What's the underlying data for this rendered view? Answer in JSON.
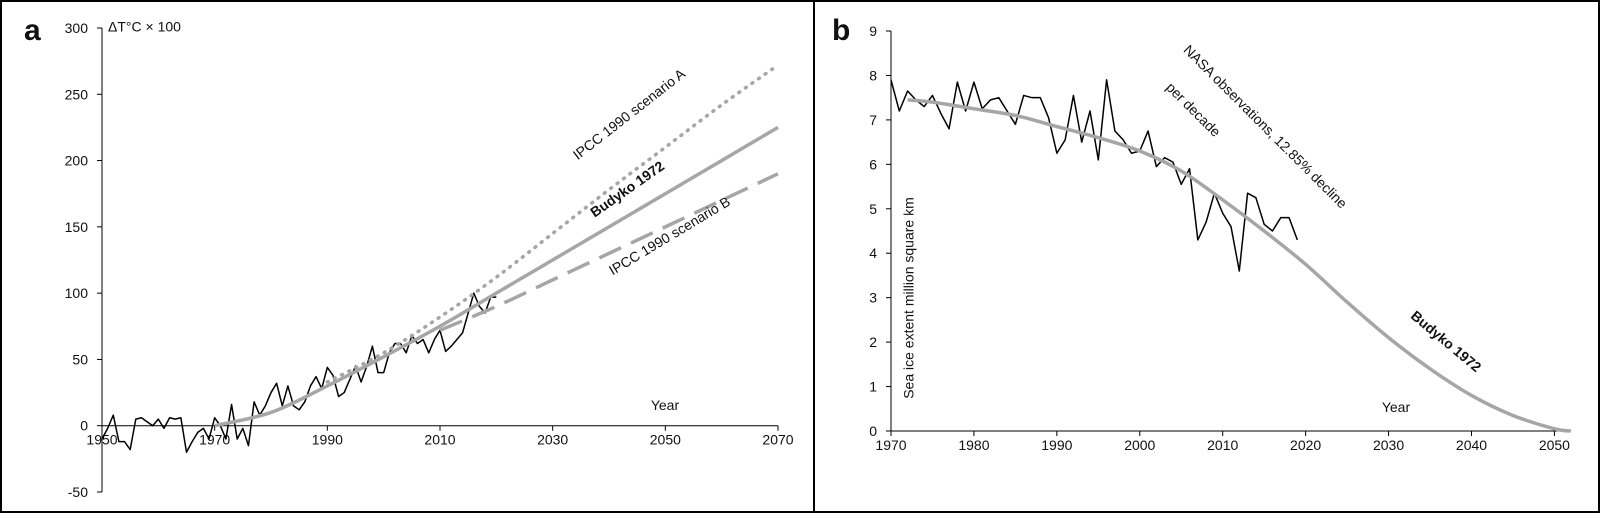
{
  "chart_data": [
    {
      "type": "line",
      "panel": "a",
      "y_label": "ΔT°C × 100",
      "x_label": "Year",
      "xlim": [
        1950,
        2070
      ],
      "xticks": [
        1950,
        1970,
        1990,
        2010,
        2030,
        2050,
        2070
      ],
      "ylim": [
        -50,
        300
      ],
      "yticks": [
        -50,
        0,
        50,
        100,
        150,
        200,
        250,
        300
      ],
      "series": [
        {
          "color": "#000000",
          "dash": "solid",
          "x": [
            1950,
            1951,
            1952,
            1953,
            1954,
            1955,
            1956,
            1957,
            1958,
            1959,
            1960,
            1961,
            1962,
            1963,
            1964,
            1965,
            1966,
            1967,
            1968,
            1969,
            1970,
            1971,
            1972,
            1973,
            1974,
            1975,
            1976,
            1977,
            1978,
            1979,
            1980,
            1981,
            1982,
            1983,
            1984,
            1985,
            1986,
            1987,
            1988,
            1989,
            1990,
            1991,
            1992,
            1993,
            1994,
            1995,
            1996,
            1997,
            1998,
            1999,
            2000,
            2001,
            2002,
            2003,
            2004,
            2005,
            2006,
            2007,
            2008,
            2009,
            2010,
            2011,
            2012,
            2013,
            2014,
            2015,
            2016,
            2017,
            2018,
            2019,
            2020
          ],
          "values": [
            -10,
            -2,
            8,
            -12,
            -12,
            -18,
            5,
            6,
            3,
            0,
            5,
            -2,
            6,
            5,
            6,
            -20,
            -12,
            -5,
            -2,
            -10,
            6,
            0,
            -10,
            16,
            -10,
            -2,
            -15,
            18,
            8,
            15,
            25,
            32,
            15,
            30,
            15,
            12,
            18,
            30,
            37,
            28,
            44,
            38,
            22,
            25,
            35,
            45,
            33,
            45,
            60,
            40,
            40,
            55,
            62,
            62,
            55,
            68,
            62,
            65,
            55,
            65,
            72,
            56,
            60,
            65,
            70,
            85,
            100,
            90,
            85,
            97,
            97
          ]
        },
        {
          "name": "Budyko 1972",
          "color": "#a6a6a6",
          "dash": "solid",
          "x": [
            1970,
            1980,
            1990,
            2000,
            2010,
            2020,
            2030,
            2040,
            2050,
            2060,
            2070
          ],
          "values": [
            0,
            10,
            30,
            52,
            75,
            100,
            125,
            150,
            175,
            200,
            225
          ]
        },
        {
          "name": "IPCC 1990 scenario A",
          "color": "#a6a6a6",
          "dash": "dotted",
          "x": [
            1990,
            2000,
            2010,
            2020,
            2030,
            2040,
            2050,
            2060,
            2070
          ],
          "values": [
            33,
            55,
            82,
            112,
            145,
            178,
            210,
            242,
            272
          ]
        },
        {
          "name": "IPCC 1990 scenario B",
          "color": "#a6a6a6",
          "dash": "dashed",
          "x": [
            2010,
            2020,
            2030,
            2040,
            2050,
            2060,
            2070
          ],
          "values": [
            72,
            90,
            110,
            130,
            150,
            170,
            190
          ]
        }
      ]
    },
    {
      "type": "line",
      "panel": "b",
      "y_label": "Sea ice extent million square km",
      "x_label": "Year",
      "annotations": [
        "NASA observations, 12.85% decline",
        "per decade"
      ],
      "xlim": [
        1970,
        2052
      ],
      "xticks": [
        1970,
        1980,
        1990,
        2000,
        2010,
        2020,
        2030,
        2040,
        2050
      ],
      "ylim": [
        0,
        9
      ],
      "yticks": [
        0,
        1,
        2,
        3,
        4,
        5,
        6,
        7,
        8,
        9
      ],
      "series": [
        {
          "color": "#000000",
          "dash": "solid",
          "x": [
            1970,
            1971,
            1972,
            1973,
            1974,
            1975,
            1976,
            1977,
            1978,
            1979,
            1980,
            1981,
            1982,
            1983,
            1984,
            1985,
            1986,
            1987,
            1988,
            1989,
            1990,
            1991,
            1992,
            1993,
            1994,
            1995,
            1996,
            1997,
            1998,
            1999,
            2000,
            2001,
            2002,
            2003,
            2004,
            2005,
            2006,
            2007,
            2008,
            2009,
            2010,
            2011,
            2012,
            2013,
            2014,
            2015,
            2016,
            2017,
            2018,
            2019
          ],
          "values": [
            7.9,
            7.2,
            7.65,
            7.45,
            7.3,
            7.55,
            7.15,
            6.8,
            7.85,
            7.2,
            7.85,
            7.25,
            7.45,
            7.5,
            7.2,
            6.9,
            7.55,
            7.5,
            7.5,
            7.05,
            6.25,
            6.55,
            7.55,
            6.5,
            7.2,
            6.1,
            7.9,
            6.75,
            6.55,
            6.25,
            6.3,
            6.75,
            5.95,
            6.15,
            6.05,
            5.55,
            5.9,
            4.3,
            4.7,
            5.35,
            4.9,
            4.6,
            3.6,
            5.35,
            5.25,
            4.65,
            4.5,
            4.8,
            4.8,
            4.3
          ]
        },
        {
          "name": "Budyko 1972",
          "color": "#a6a6a6",
          "dash": "solid",
          "x": [
            1972,
            1975,
            1980,
            1985,
            1990,
            1995,
            2000,
            2005,
            2010,
            2015,
            2020,
            2025,
            2030,
            2035,
            2040,
            2045,
            2050,
            2052
          ],
          "values": [
            7.45,
            7.4,
            7.25,
            7.1,
            6.85,
            6.6,
            6.3,
            5.85,
            5.2,
            4.5,
            3.75,
            2.9,
            2.1,
            1.4,
            0.8,
            0.35,
            0.05,
            0
          ]
        }
      ]
    }
  ]
}
